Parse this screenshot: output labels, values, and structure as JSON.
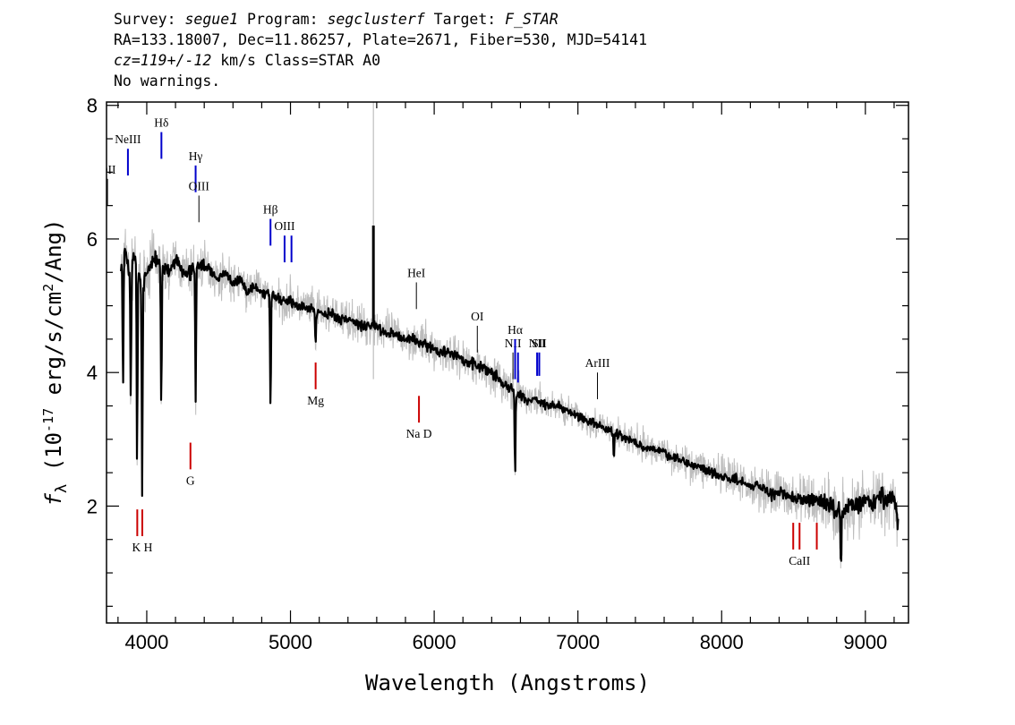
{
  "header": {
    "line1": {
      "survey_label": "Survey: ",
      "survey": "segue1",
      "program_label": " Program: ",
      "program": "segclusterf",
      "target_label": " Target: ",
      "target": "F_STAR"
    },
    "line2": "RA=133.18007, Dec=11.86257, Plate=2671, Fiber=530, MJD=54141",
    "line3": {
      "cz": "cz=119+/-12",
      "rest": " km/s Class=STAR A0"
    },
    "line4": "No warnings."
  },
  "chart_data": {
    "type": "line",
    "title": "",
    "xlabel": "Wavelength (Angstroms)",
    "ylabel": "f_λ (10^-17 erg/s/cm^2/Ang)",
    "xlim": [
      3720,
      9300
    ],
    "ylim": [
      0.25,
      8.05
    ],
    "x_ticks": [
      4000,
      5000,
      6000,
      7000,
      8000,
      9000
    ],
    "y_ticks": [
      2,
      4,
      6,
      8
    ],
    "grid": false,
    "series": [
      {
        "role": "smoothed flux",
        "color": "#000000",
        "x": [
          3820,
          3850,
          3880,
          3920,
          3960,
          4000,
          4050,
          4100,
          4150,
          4200,
          4250,
          4300,
          4340,
          4400,
          4450,
          4500,
          4550,
          4600,
          4650,
          4700,
          4750,
          4800,
          4860,
          4900,
          4950,
          5000,
          5050,
          5100,
          5150,
          5200,
          5250,
          5300,
          5350,
          5400,
          5450,
          5500,
          5550,
          5600,
          5650,
          5700,
          5750,
          5800,
          5850,
          5900,
          5950,
          6000,
          6050,
          6100,
          6150,
          6200,
          6250,
          6300,
          6350,
          6400,
          6450,
          6500,
          6563,
          6600,
          6650,
          6700,
          6750,
          6800,
          6850,
          6900,
          6950,
          7000,
          7050,
          7100,
          7150,
          7200,
          7250,
          7300,
          7350,
          7400,
          7450,
          7500,
          7550,
          7600,
          7650,
          7700,
          7750,
          7800,
          7850,
          7900,
          7950,
          8000,
          8050,
          8100,
          8150,
          8200,
          8250,
          8300,
          8350,
          8400,
          8450,
          8500,
          8550,
          8600,
          8650,
          8700,
          8750,
          8800,
          8850,
          8900,
          8950,
          9000,
          9050,
          9100,
          9150,
          9200,
          9230
        ],
        "y": [
          5.6,
          5.9,
          5.4,
          5.8,
          5.3,
          5.5,
          5.7,
          5.6,
          5.5,
          5.7,
          5.5,
          5.5,
          5.6,
          5.6,
          5.5,
          5.4,
          5.5,
          5.3,
          5.4,
          5.2,
          5.3,
          5.2,
          5.2,
          5.1,
          5.05,
          5.1,
          5.0,
          5.0,
          4.95,
          4.9,
          4.9,
          4.85,
          4.8,
          4.8,
          4.75,
          4.7,
          4.7,
          4.7,
          4.6,
          4.6,
          4.55,
          4.5,
          4.5,
          4.45,
          4.4,
          4.35,
          4.3,
          4.3,
          4.25,
          4.2,
          4.15,
          4.1,
          4.05,
          4.0,
          3.9,
          3.8,
          3.7,
          3.65,
          3.6,
          3.6,
          3.55,
          3.5,
          3.5,
          3.45,
          3.4,
          3.35,
          3.3,
          3.25,
          3.2,
          3.15,
          3.1,
          3.05,
          3.0,
          2.95,
          2.9,
          2.85,
          2.85,
          2.8,
          2.75,
          2.7,
          2.65,
          2.6,
          2.6,
          2.55,
          2.5,
          2.45,
          2.4,
          2.4,
          2.35,
          2.3,
          2.3,
          2.25,
          2.2,
          2.2,
          2.15,
          2.1,
          2.1,
          2.1,
          2.05,
          2.05,
          2.0,
          1.9,
          1.95,
          2.0,
          2.0,
          2.1,
          2.0,
          2.15,
          2.1,
          2.2,
          1.7
        ]
      },
      {
        "role": "raw flux",
        "color": "#bdbdbd",
        "x": [
          3820,
          3850,
          3880,
          3920,
          3960,
          4000,
          4050,
          4100,
          4150,
          4200,
          4250,
          4300,
          4340,
          4400,
          4450,
          4500,
          4550,
          4600,
          4650,
          4700,
          4750,
          4800,
          4860,
          4900,
          4950,
          5000,
          5050,
          5100,
          5150,
          5200,
          5250,
          5300,
          5350,
          5400,
          5450,
          5500,
          5550,
          5600,
          5650,
          5700,
          5750,
          5800,
          5850,
          5900,
          5950,
          6000,
          6050,
          6100,
          6150,
          6200,
          6250,
          6300,
          6350,
          6400,
          6450,
          6500,
          6563,
          6600,
          6650,
          6700,
          6750,
          6800,
          6850,
          6900,
          6950,
          7000,
          7050,
          7100,
          7150,
          7200,
          7250,
          7300,
          7350,
          7400,
          7450,
          7500,
          7550,
          7600,
          7650,
          7700,
          7750,
          7800,
          7850,
          7900,
          7950,
          8000,
          8050,
          8100,
          8150,
          8200,
          8250,
          8300,
          8350,
          8400,
          8450,
          8500,
          8550,
          8600,
          8650,
          8700,
          8750,
          8800,
          8850,
          8900,
          8950,
          9000,
          9050,
          9100,
          9150,
          9200,
          9230
        ],
        "y": [
          5.6,
          5.9,
          5.4,
          5.8,
          5.3,
          5.5,
          5.7,
          5.6,
          5.5,
          5.7,
          5.5,
          5.5,
          5.6,
          5.6,
          5.5,
          5.4,
          5.5,
          5.3,
          5.4,
          5.2,
          5.3,
          5.2,
          5.2,
          5.1,
          5.05,
          5.1,
          5.0,
          5.0,
          4.95,
          4.9,
          4.9,
          4.85,
          4.8,
          4.8,
          4.75,
          4.7,
          4.7,
          4.7,
          4.6,
          4.6,
          4.55,
          4.5,
          4.5,
          4.45,
          4.4,
          4.35,
          4.3,
          4.3,
          4.25,
          4.2,
          4.15,
          4.1,
          4.05,
          4.0,
          3.9,
          3.8,
          3.7,
          3.65,
          3.6,
          3.6,
          3.55,
          3.5,
          3.5,
          3.45,
          3.4,
          3.35,
          3.3,
          3.25,
          3.2,
          3.15,
          3.1,
          3.05,
          3.0,
          2.95,
          2.9,
          2.85,
          2.85,
          2.8,
          2.75,
          2.7,
          2.65,
          2.6,
          2.6,
          2.55,
          2.5,
          2.45,
          2.4,
          2.4,
          2.35,
          2.3,
          2.3,
          2.25,
          2.2,
          2.2,
          2.15,
          2.1,
          2.1,
          2.1,
          2.05,
          2.05,
          2.0,
          1.9,
          1.95,
          2.0,
          2.0,
          2.1,
          2.0,
          2.15,
          2.1,
          2.2,
          1.7
        ],
        "scatter": [
          0.35,
          0.35,
          0.4,
          0.4,
          0.4,
          0.35,
          0.35,
          0.35,
          0.3,
          0.3,
          0.3,
          0.3,
          0.3,
          0.3,
          0.25,
          0.25,
          0.25,
          0.25,
          0.25,
          0.25,
          0.25,
          0.25,
          0.25,
          0.25,
          0.25,
          0.25,
          0.25,
          0.25,
          0.25,
          0.25,
          0.25,
          0.25,
          0.25,
          0.25,
          0.25,
          0.25,
          0.25,
          0.25,
          0.25,
          0.25,
          0.25,
          0.25,
          0.25,
          0.25,
          0.25,
          0.25,
          0.25,
          0.25,
          0.25,
          0.25,
          0.25,
          0.25,
          0.25,
          0.25,
          0.25,
          0.25,
          0.25,
          0.25,
          0.2,
          0.2,
          0.2,
          0.2,
          0.2,
          0.2,
          0.2,
          0.2,
          0.2,
          0.2,
          0.2,
          0.2,
          0.2,
          0.2,
          0.2,
          0.2,
          0.2,
          0.2,
          0.2,
          0.2,
          0.2,
          0.2,
          0.2,
          0.2,
          0.25,
          0.25,
          0.25,
          0.25,
          0.25,
          0.25,
          0.25,
          0.25,
          0.25,
          0.3,
          0.3,
          0.3,
          0.3,
          0.3,
          0.3,
          0.35,
          0.35,
          0.35,
          0.4,
          0.45,
          0.45,
          0.4,
          0.4,
          0.4,
          0.4,
          0.4,
          0.4,
          0.4,
          0.4
        ]
      }
    ],
    "absorption_features": [
      {
        "wavelength": 3835,
        "min": 3.8
      },
      {
        "wavelength": 3889,
        "min": 3.65
      },
      {
        "wavelength": 3933,
        "min": 2.55
      },
      {
        "wavelength": 3968,
        "min": 2.2
      },
      {
        "wavelength": 4101,
        "min": 3.45
      },
      {
        "wavelength": 4340,
        "min": 3.55
      },
      {
        "wavelength": 4861,
        "min": 3.4
      },
      {
        "wavelength": 5175,
        "min": 4.45
      },
      {
        "wavelength": 6563,
        "min": 2.5
      },
      {
        "wavelength": 7250,
        "min": 2.7
      },
      {
        "wavelength": 8830,
        "min": 1.1
      }
    ],
    "sky_residual": {
      "wavelength": 5577,
      "top": 8.05,
      "bottom": 3.9,
      "smoothed_top": 6.2
    },
    "emission_lines": [
      {
        "label": "OII",
        "wavelength": 3727,
        "color": "#000000",
        "top": 6.9,
        "bottom": 6.5
      },
      {
        "label": "NeIII",
        "wavelength": 3869,
        "color": "#0000cc",
        "top": 7.35,
        "bottom": 6.95
      },
      {
        "label": "Hδ",
        "wavelength": 4102,
        "color": "#0000cc",
        "top": 7.6,
        "bottom": 7.2
      },
      {
        "label": "Hγ",
        "wavelength": 4340,
        "color": "#0000cc",
        "top": 7.1,
        "bottom": 6.7
      },
      {
        "label": "OIII",
        "wavelength": 4363,
        "color": "#000000",
        "top": 6.65,
        "bottom": 6.25
      },
      {
        "label": "Hβ",
        "wavelength": 4861,
        "color": "#0000cc",
        "top": 6.3,
        "bottom": 5.9
      },
      {
        "label": "OIII",
        "wavelength": 4959,
        "color": "#0000cc",
        "top": 6.05,
        "bottom": 5.65
      },
      {
        "label": "",
        "wavelength": 5007,
        "color": "#0000cc",
        "top": 6.05,
        "bottom": 5.65
      },
      {
        "label": "HeI",
        "wavelength": 5876,
        "color": "#000000",
        "top": 5.35,
        "bottom": 4.95
      },
      {
        "label": "OI",
        "wavelength": 6300,
        "color": "#000000",
        "top": 4.7,
        "bottom": 4.3
      },
      {
        "label": "NII",
        "wavelength": 6548,
        "color": "#000000",
        "top": 4.3,
        "bottom": 3.9
      },
      {
        "label": "Hα",
        "wavelength": 6563,
        "color": "#0000cc",
        "top": 4.5,
        "bottom": 3.9
      },
      {
        "label": "",
        "wavelength": 6583,
        "color": "#0000cc",
        "top": 4.3,
        "bottom": 3.85
      },
      {
        "label": "NII",
        "wavelength": 6716,
        "color": "#0000cc",
        "top": 4.3,
        "bottom": 3.95
      },
      {
        "label": "SII",
        "wavelength": 6731,
        "color": "#0000cc",
        "top": 4.3,
        "bottom": 3.95
      },
      {
        "label": "ArIII",
        "wavelength": 7136,
        "color": "#000000",
        "top": 4.0,
        "bottom": 3.6
      }
    ],
    "absorption_lines": [
      {
        "label": "",
        "wavelength": 3934,
        "color": "#cc0000",
        "top": 1.95,
        "bottom": 1.55
      },
      {
        "label": "K H",
        "wavelength": 3969,
        "color": "#cc0000",
        "top": 1.95,
        "bottom": 1.55
      },
      {
        "label": "G",
        "wavelength": 4304,
        "color": "#cc0000",
        "top": 2.95,
        "bottom": 2.55
      },
      {
        "label": "Mg",
        "wavelength": 5175,
        "color": "#cc0000",
        "top": 4.15,
        "bottom": 3.75
      },
      {
        "label": "Na D",
        "wavelength": 5894,
        "color": "#cc0000",
        "top": 3.65,
        "bottom": 3.25
      },
      {
        "label": "",
        "wavelength": 8498,
        "color": "#cc0000",
        "top": 1.75,
        "bottom": 1.35
      },
      {
        "label": "CaII",
        "wavelength": 8542,
        "color": "#cc0000",
        "top": 1.75,
        "bottom": 1.35
      },
      {
        "label": "",
        "wavelength": 8662,
        "color": "#cc0000",
        "top": 1.75,
        "bottom": 1.35
      }
    ]
  }
}
